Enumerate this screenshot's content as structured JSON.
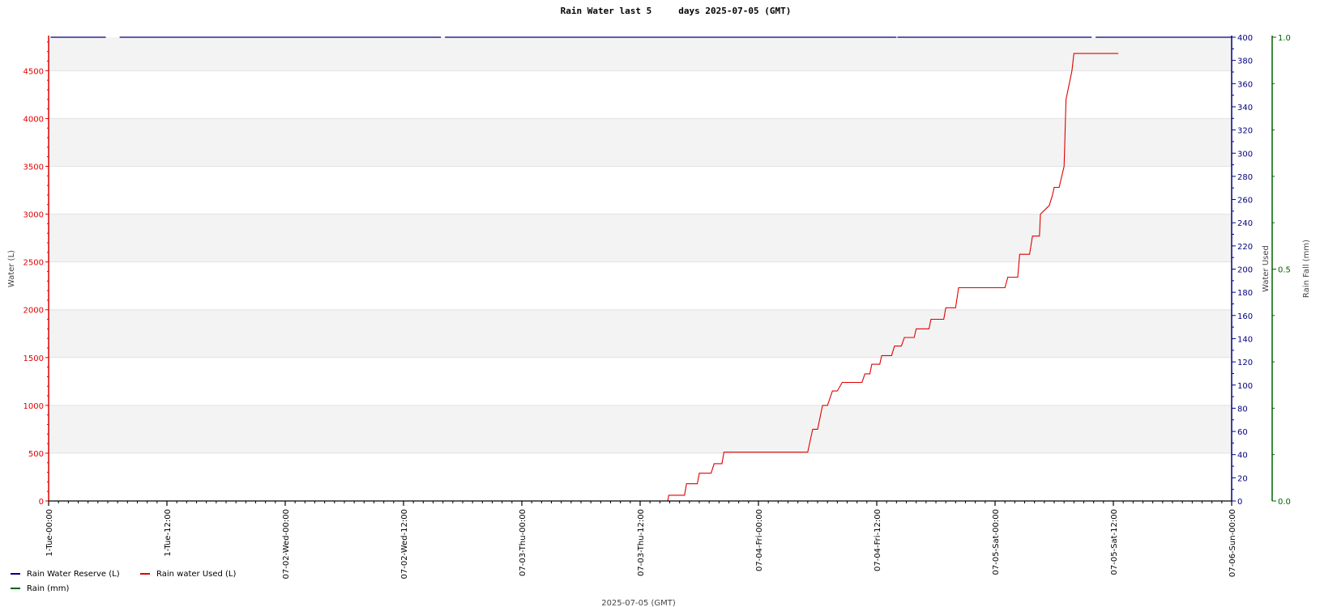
{
  "chart_data": {
    "type": "line",
    "title": "Rain Water last 5     days 2025-07-05 (GMT)",
    "xlabel": "2025-07-05 (GMT)",
    "ylabel_left": "Water (L)",
    "ylabel_right1": "Water Used",
    "ylabel_right2": "Rain Fall (mm)",
    "x_range_hours": [
      0,
      120
    ],
    "ylim_left": [
      0,
      4850
    ],
    "ylim_right1": [
      0,
      400
    ],
    "ylim_right2": [
      0,
      1
    ],
    "x_ticks": [
      {
        "h": 0,
        "label": "1-Tue-00:00"
      },
      {
        "h": 12,
        "label": "1-Tue-12:00"
      },
      {
        "h": 24,
        "label": "07-02-Wed-00:00"
      },
      {
        "h": 36,
        "label": "07-02-Wed-12:00"
      },
      {
        "h": 48,
        "label": "07-03-Thu-00:00"
      },
      {
        "h": 60,
        "label": "07-03-Thu-12:00"
      },
      {
        "h": 72,
        "label": "07-04-Fri-00:00"
      },
      {
        "h": 84,
        "label": "07-04-Fri-12:00"
      },
      {
        "h": 96,
        "label": "07-05-Sat-00:00"
      },
      {
        "h": 108,
        "label": "07-05-Sat-12:00"
      },
      {
        "h": 120,
        "label": "07-06-Sun-00:00"
      }
    ],
    "y_ticks_left": [
      "0",
      "500",
      "1000",
      "1500",
      "2000",
      "2500",
      "3000",
      "3500",
      "4000",
      "4500"
    ],
    "y_ticks_right1": [
      "0",
      "20",
      "40",
      "60",
      "80",
      "100",
      "120",
      "140",
      "160",
      "180",
      "200",
      "220",
      "240",
      "260",
      "280",
      "300",
      "320",
      "340",
      "360",
      "380",
      "400"
    ],
    "y_ticks_right2": [
      "0.0",
      "0.5",
      "1.0"
    ],
    "legend": [
      {
        "name": "Rain Water Reserve (L)",
        "color": "#00007f"
      },
      {
        "name": "Rain water Used (L)",
        "color": "#e00000"
      },
      {
        "name": "Rain (mm)",
        "color": "#006400"
      }
    ],
    "reserve_series": {
      "name": "Rain Water Reserve (L)",
      "value": 4850,
      "segments": [
        [
          0.2,
          5.8
        ],
        [
          7.2,
          39.8
        ],
        [
          40.2,
          86.0
        ],
        [
          86.1,
          105.8
        ],
        [
          106.2,
          120
        ]
      ]
    },
    "used_series": {
      "name": "Rain water Used (L)",
      "x": [
        62.8,
        62.9,
        64.5,
        64.7,
        65.8,
        66.0,
        67.2,
        67.5,
        68.3,
        68.5,
        77.0,
        77.5,
        78.0,
        78.5,
        79.0,
        79.5,
        80.0,
        80.5,
        82.5,
        82.8,
        83.3,
        83.5,
        84.3,
        84.5,
        85.5,
        85.8,
        86.5,
        86.8,
        87.8,
        88.0,
        89.3,
        89.5,
        90.8,
        91.0,
        92.0,
        92.3,
        97.0,
        97.3,
        98.3,
        98.5,
        99.5,
        99.8,
        100.5,
        100.6,
        101.5,
        101.8,
        102.0,
        102.5,
        103.0,
        103.2,
        103.8,
        104.0,
        104.5,
        108.5
      ],
      "y": [
        0,
        60,
        60,
        180,
        180,
        290,
        290,
        390,
        390,
        510,
        510,
        750,
        750,
        1000,
        1000,
        1150,
        1150,
        1240,
        1240,
        1330,
        1330,
        1430,
        1430,
        1520,
        1520,
        1620,
        1620,
        1710,
        1710,
        1800,
        1800,
        1900,
        1900,
        2020,
        2020,
        2230,
        2230,
        2340,
        2340,
        2580,
        2580,
        2770,
        2770,
        3000,
        3090,
        3190,
        3280,
        3280,
        3500,
        4200,
        4500,
        4680,
        4680,
        4680
      ]
    }
  }
}
